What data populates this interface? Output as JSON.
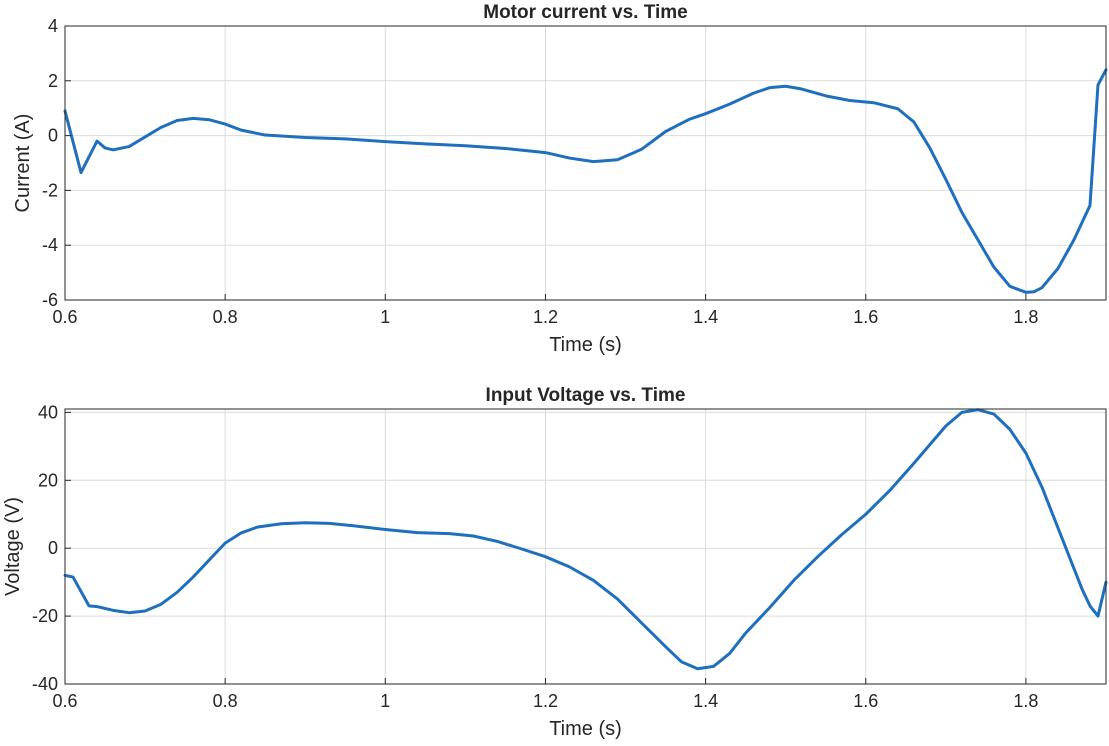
{
  "colors": {
    "series": "#1f6fbf",
    "grid": "#dcdcdc",
    "axis": "#262626",
    "background": "#ffffff"
  },
  "chart_data": [
    {
      "type": "line",
      "title": "Motor current vs. Time",
      "xlabel": "Time (s)",
      "ylabel": "Current (A)",
      "xlim": [
        0.6,
        1.9
      ],
      "ylim": [
        -6,
        4
      ],
      "xticks": [
        0.6,
        0.8,
        1.0,
        1.2,
        1.4,
        1.6,
        1.8
      ],
      "xtick_labels": [
        "0.6",
        "0.8",
        "1",
        "1.2",
        "1.4",
        "1.6",
        "1.8"
      ],
      "yticks": [
        -6,
        -4,
        -2,
        0,
        2,
        4
      ],
      "ytick_labels": [
        "-6",
        "-4",
        "-2",
        "0",
        "2",
        "4"
      ],
      "grid": true,
      "series": [
        {
          "x": [
            0.6,
            0.62,
            0.64,
            0.65,
            0.66,
            0.68,
            0.7,
            0.72,
            0.74,
            0.76,
            0.78,
            0.8,
            0.82,
            0.85,
            0.9,
            0.95,
            1.0,
            1.05,
            1.1,
            1.15,
            1.2,
            1.23,
            1.26,
            1.29,
            1.32,
            1.35,
            1.38,
            1.4,
            1.43,
            1.46,
            1.48,
            1.5,
            1.52,
            1.55,
            1.58,
            1.61,
            1.64,
            1.66,
            1.68,
            1.7,
            1.72,
            1.74,
            1.76,
            1.78,
            1.8,
            1.81,
            1.82,
            1.84,
            1.86,
            1.88,
            1.89,
            1.9
          ],
          "y": [
            0.9,
            -1.35,
            -0.2,
            -0.45,
            -0.52,
            -0.4,
            -0.05,
            0.3,
            0.55,
            0.63,
            0.58,
            0.42,
            0.2,
            0.02,
            -0.07,
            -0.12,
            -0.22,
            -0.3,
            -0.37,
            -0.47,
            -0.62,
            -0.82,
            -0.95,
            -0.88,
            -0.5,
            0.15,
            0.6,
            0.8,
            1.15,
            1.55,
            1.75,
            1.8,
            1.7,
            1.45,
            1.28,
            1.2,
            0.98,
            0.5,
            -0.45,
            -1.6,
            -2.8,
            -3.8,
            -4.8,
            -5.5,
            -5.72,
            -5.7,
            -5.55,
            -4.85,
            -3.8,
            -2.55,
            1.85,
            2.4
          ]
        }
      ]
    },
    {
      "type": "line",
      "title": "Input Voltage vs. Time",
      "xlabel": "Time (s)",
      "ylabel": "Voltage (V)",
      "xlim": [
        0.6,
        1.9
      ],
      "ylim": [
        -40,
        41
      ],
      "xticks": [
        0.6,
        0.8,
        1.0,
        1.2,
        1.4,
        1.6,
        1.8
      ],
      "xtick_labels": [
        "0.6",
        "0.8",
        "1",
        "1.2",
        "1.4",
        "1.6",
        "1.8"
      ],
      "yticks": [
        -40,
        -20,
        0,
        20,
        40
      ],
      "ytick_labels": [
        "-40",
        "-20",
        "0",
        "20",
        "40"
      ],
      "grid": true,
      "series": [
        {
          "x": [
            0.6,
            0.61,
            0.63,
            0.64,
            0.66,
            0.68,
            0.7,
            0.72,
            0.74,
            0.76,
            0.78,
            0.8,
            0.82,
            0.84,
            0.87,
            0.9,
            0.93,
            0.96,
            1.0,
            1.04,
            1.08,
            1.11,
            1.14,
            1.17,
            1.2,
            1.23,
            1.26,
            1.29,
            1.32,
            1.35,
            1.37,
            1.39,
            1.41,
            1.43,
            1.45,
            1.48,
            1.51,
            1.54,
            1.57,
            1.6,
            1.63,
            1.66,
            1.68,
            1.7,
            1.72,
            1.74,
            1.76,
            1.78,
            1.8,
            1.82,
            1.84,
            1.86,
            1.87,
            1.88,
            1.89,
            1.9
          ],
          "y": [
            -8,
            -8.5,
            -17,
            -17.2,
            -18.3,
            -19,
            -18.5,
            -16.5,
            -13,
            -8.5,
            -3.5,
            1.5,
            4.5,
            6.2,
            7.2,
            7.5,
            7.3,
            6.6,
            5.5,
            4.6,
            4.3,
            3.6,
            2,
            -0.2,
            -2.5,
            -5.5,
            -9.5,
            -15,
            -22,
            -29,
            -33.5,
            -35.5,
            -34.8,
            -31,
            -25,
            -17.5,
            -9.5,
            -2.5,
            4,
            10,
            17,
            25,
            30.5,
            36,
            40,
            40.8,
            39.5,
            35,
            28,
            18,
            6,
            -6,
            -12,
            -17,
            -20,
            -10
          ]
        }
      ]
    }
  ]
}
